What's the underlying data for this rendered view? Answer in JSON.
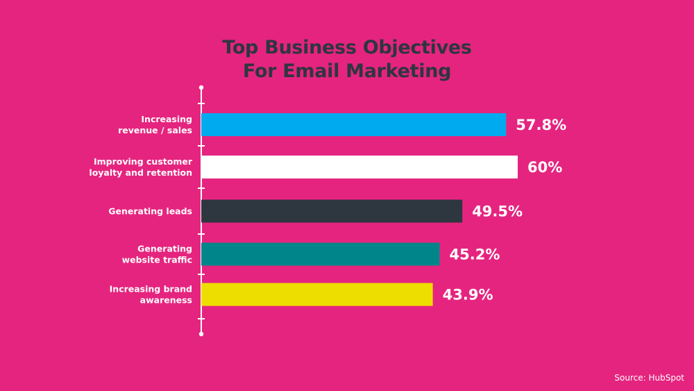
{
  "chart_data": {
    "type": "bar",
    "orientation": "horizontal",
    "title": [
      "Top Business Objectives",
      "For Email Marketing"
    ],
    "categories": [
      [
        "Increasing",
        "revenue / sales"
      ],
      [
        "Improving customer",
        "loyalty and retention"
      ],
      [
        "Generating leads"
      ],
      [
        "Generating",
        "website traffic"
      ],
      [
        "Increasing brand",
        "awareness"
      ]
    ],
    "values": [
      57.8,
      60,
      49.5,
      45.2,
      43.9
    ],
    "value_labels": [
      "57.8%",
      "60%",
      "49.5%",
      "45.2%",
      "43.9%"
    ],
    "bar_colors": [
      "#00AAEE",
      "#FFFFFF",
      "#2E3640",
      "#00868A",
      "#EEDE00"
    ],
    "xlim": [
      0,
      60
    ],
    "grid": false,
    "legend": "none"
  },
  "source": "Source: HubSpot",
  "colors": {
    "background": "#E5247F",
    "title": "#2E3640",
    "axis": "#FFFFFF",
    "text": "#FFFFFF"
  }
}
